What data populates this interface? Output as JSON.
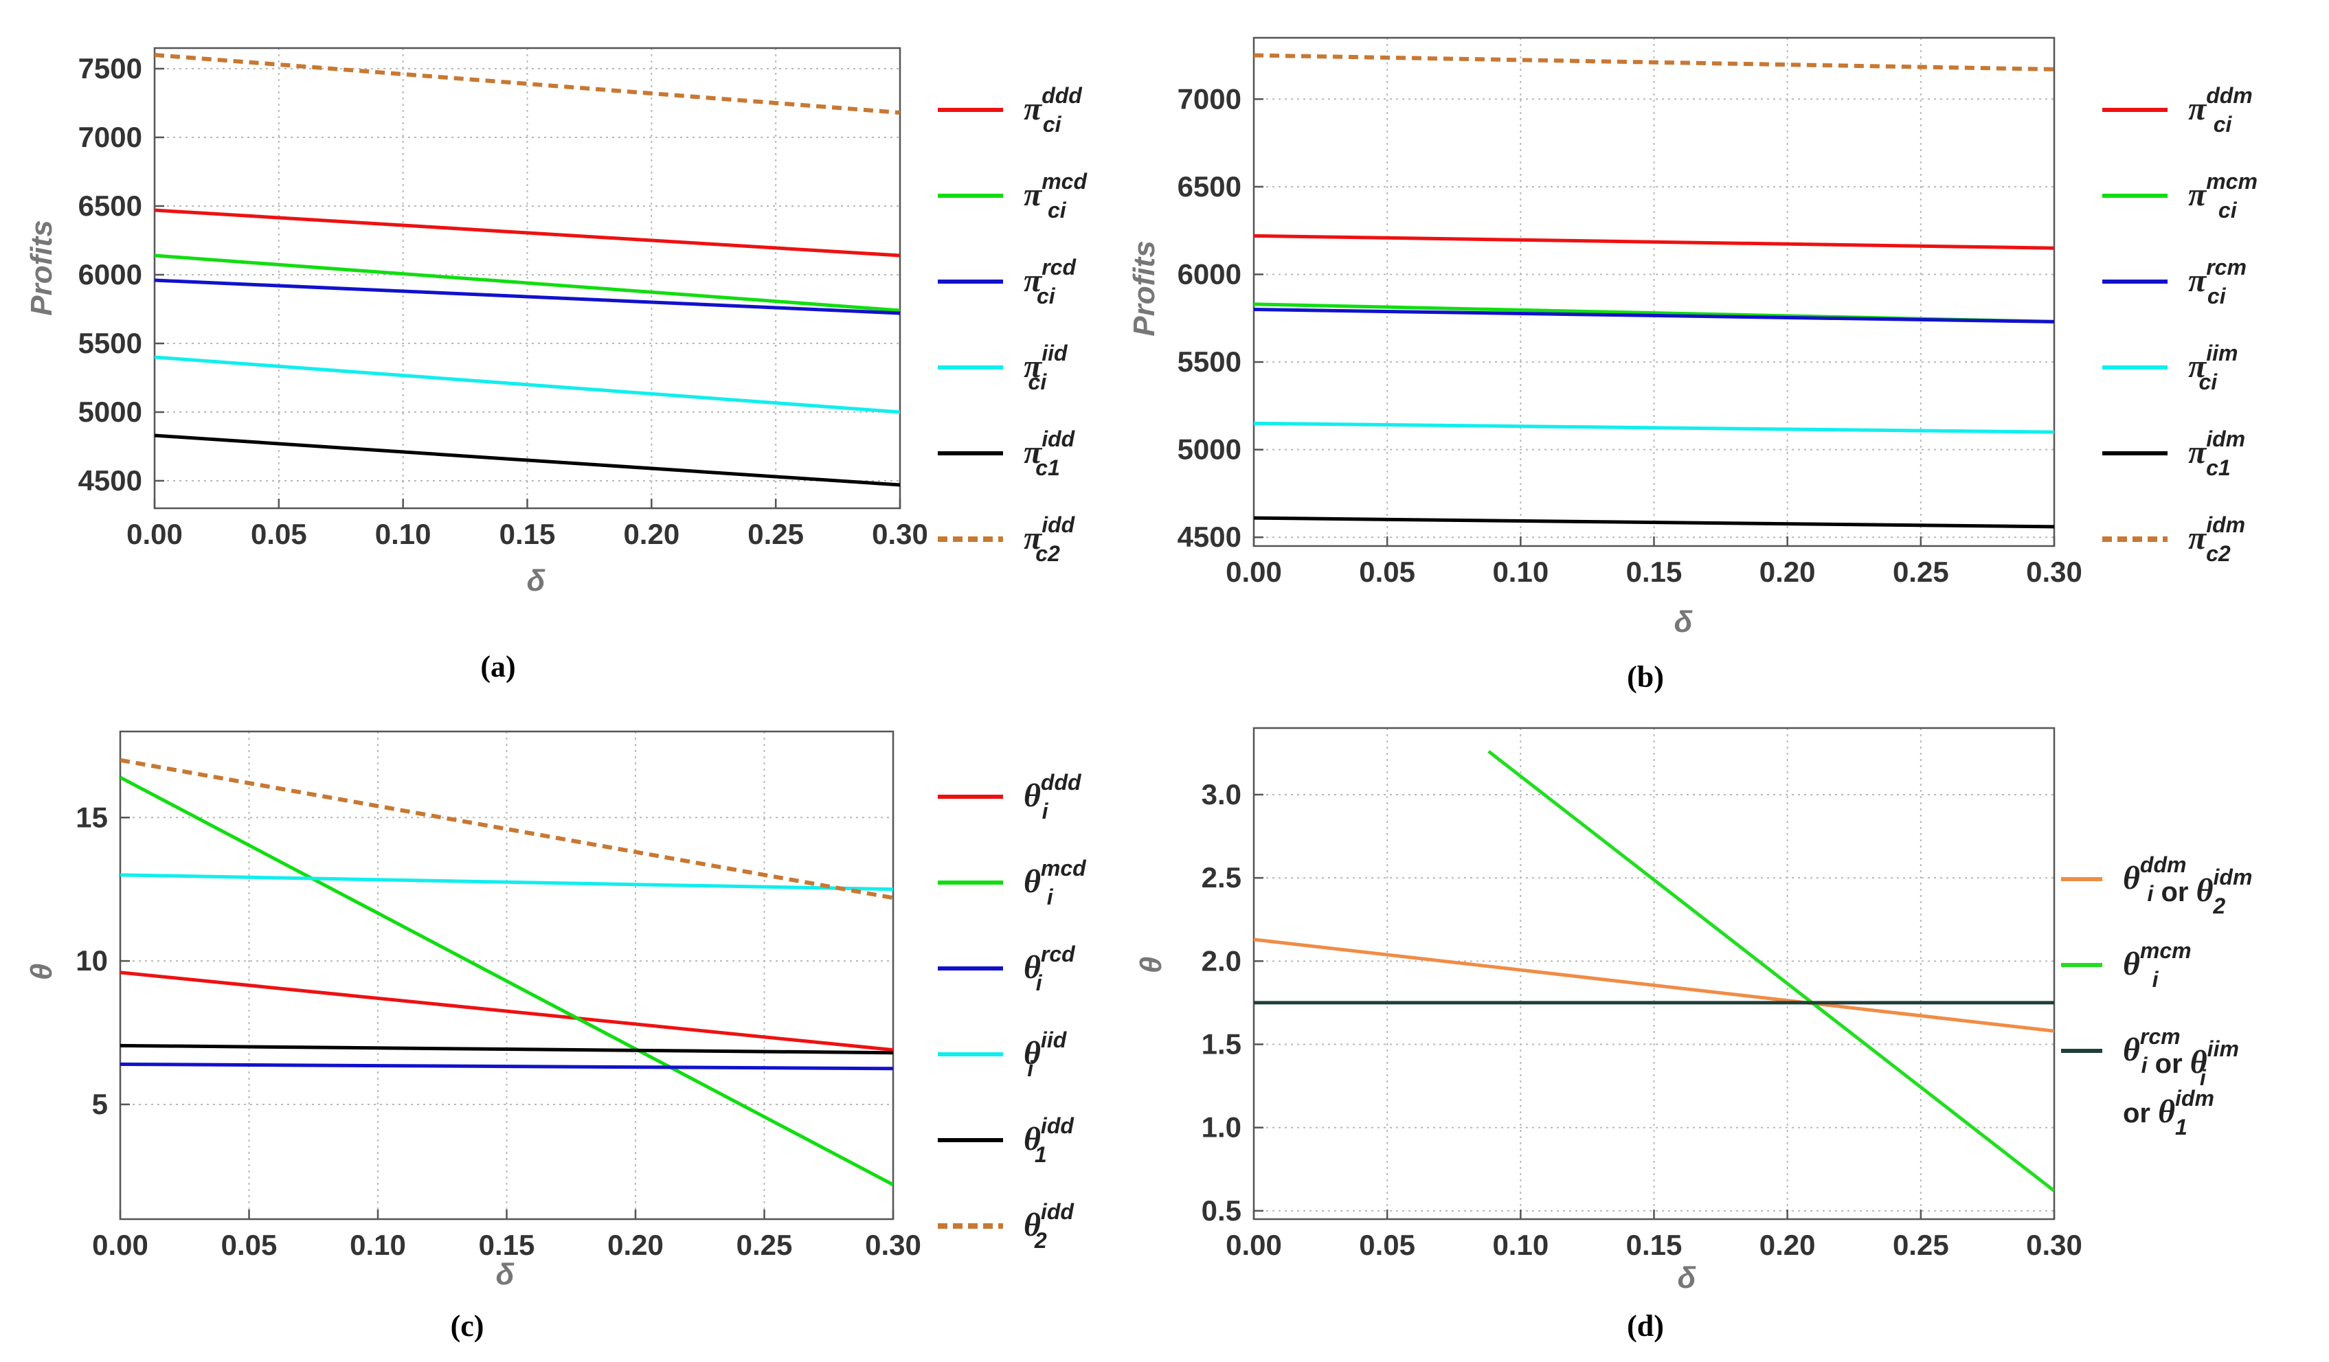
{
  "chart_data": [
    {
      "id": "a",
      "type": "line",
      "caption": "(a)",
      "xlabel": "δ",
      "ylabel": "Profits",
      "xlim": [
        0,
        0.3
      ],
      "ylim": [
        4300,
        7650
      ],
      "xticks": [
        0.0,
        0.05,
        0.1,
        0.15,
        0.2,
        0.25,
        0.3
      ],
      "xtick_labels": [
        "0.00",
        "0.05",
        "0.10",
        "0.15",
        "0.20",
        "0.25",
        "0.30"
      ],
      "yticks": [
        4500,
        5000,
        5500,
        6000,
        6500,
        7000,
        7500
      ],
      "ytick_labels": [
        "4500",
        "5000",
        "5500",
        "6000",
        "6500",
        "7000",
        "7500"
      ],
      "grid": true,
      "series": [
        {
          "base": "π",
          "sup": "ddd",
          "sub": "ci",
          "color": "#ee1111",
          "dash": false,
          "x": [
            0,
            0.3
          ],
          "y": [
            6470,
            6140
          ]
        },
        {
          "base": "π",
          "sup": "mcd",
          "sub": "ci",
          "color": "#11dd11",
          "dash": false,
          "x": [
            0,
            0.3
          ],
          "y": [
            6140,
            5740
          ]
        },
        {
          "base": "π",
          "sup": "rcd",
          "sub": "ci",
          "color": "#1111cc",
          "dash": false,
          "x": [
            0,
            0.3
          ],
          "y": [
            5960,
            5720
          ]
        },
        {
          "base": "π",
          "sup": "iid",
          "sub": "ci",
          "color": "#11eeee",
          "dash": false,
          "x": [
            0,
            0.3
          ],
          "y": [
            5400,
            5000
          ]
        },
        {
          "base": "π",
          "sup": "idd",
          "sub": "c1",
          "color": "#000000",
          "dash": false,
          "x": [
            0,
            0.3
          ],
          "y": [
            4830,
            4470
          ]
        },
        {
          "base": "π",
          "sup": "idd",
          "sub": "c2",
          "color": "#c87832",
          "dash": true,
          "x": [
            0,
            0.3
          ],
          "y": [
            7600,
            7180
          ]
        }
      ]
    },
    {
      "id": "b",
      "type": "line",
      "caption": "(b)",
      "xlabel": "δ",
      "ylabel": "Profits",
      "xlim": [
        0,
        0.3
      ],
      "ylim": [
        4450,
        7350
      ],
      "xticks": [
        0.0,
        0.05,
        0.1,
        0.15,
        0.2,
        0.25,
        0.3
      ],
      "xtick_labels": [
        "0.00",
        "0.05",
        "0.10",
        "0.15",
        "0.20",
        "0.25",
        "0.30"
      ],
      "yticks": [
        4500,
        5000,
        5500,
        6000,
        6500,
        7000
      ],
      "ytick_labels": [
        "4500",
        "5000",
        "5500",
        "6000",
        "6500",
        "7000"
      ],
      "grid": true,
      "series": [
        {
          "base": "π",
          "sup": "ddm",
          "sub": "ci",
          "color": "#ee1111",
          "dash": false,
          "x": [
            0,
            0.3
          ],
          "y": [
            6220,
            6150
          ]
        },
        {
          "base": "π",
          "sup": "mcm",
          "sub": "ci",
          "color": "#11dd11",
          "dash": false,
          "x": [
            0,
            0.3
          ],
          "y": [
            5830,
            5730
          ]
        },
        {
          "base": "π",
          "sup": "rcm",
          "sub": "ci",
          "color": "#1111cc",
          "dash": false,
          "x": [
            0,
            0.3
          ],
          "y": [
            5800,
            5730
          ]
        },
        {
          "base": "π",
          "sup": "iim",
          "sub": "ci",
          "color": "#11eeee",
          "dash": false,
          "x": [
            0,
            0.3
          ],
          "y": [
            5150,
            5100
          ]
        },
        {
          "base": "π",
          "sup": "idm",
          "sub": "c1",
          "color": "#000000",
          "dash": false,
          "x": [
            0,
            0.3
          ],
          "y": [
            4610,
            4560
          ]
        },
        {
          "base": "π",
          "sup": "idm",
          "sub": "c2",
          "color": "#c87832",
          "dash": true,
          "x": [
            0,
            0.3
          ],
          "y": [
            7250,
            7170
          ]
        }
      ]
    },
    {
      "id": "c",
      "type": "line",
      "caption": "(c)",
      "xlabel": "δ",
      "ylabel": "θ",
      "xlim": [
        0,
        0.3
      ],
      "ylim": [
        1.0,
        18.0
      ],
      "xticks": [
        0.0,
        0.05,
        0.1,
        0.15,
        0.2,
        0.25,
        0.3
      ],
      "xtick_labels": [
        "0.00",
        "0.05",
        "0.10",
        "0.15",
        "0.20",
        "0.25",
        "0.30"
      ],
      "yticks": [
        5,
        10,
        15
      ],
      "ytick_labels": [
        "5",
        "10",
        "15"
      ],
      "grid": true,
      "series": [
        {
          "base": "θ",
          "sup": "ddd",
          "sub": "i",
          "color": "#ee1111",
          "dash": false,
          "x": [
            0,
            0.3
          ],
          "y": [
            9.6,
            6.9
          ]
        },
        {
          "base": "θ",
          "sup": "mcd",
          "sub": "i",
          "color": "#11dd11",
          "dash": false,
          "x": [
            0,
            0.3
          ],
          "y": [
            16.4,
            2.2
          ]
        },
        {
          "base": "θ",
          "sup": "rcd",
          "sub": "i",
          "color": "#1111cc",
          "dash": false,
          "x": [
            0,
            0.3
          ],
          "y": [
            6.4,
            6.25
          ]
        },
        {
          "base": "θ",
          "sup": "iid",
          "sub": "i",
          "color": "#11eeee",
          "dash": false,
          "x": [
            0,
            0.3
          ],
          "y": [
            13.0,
            12.5
          ]
        },
        {
          "base": "θ",
          "sup": "idd",
          "sub": "1",
          "color": "#000000",
          "dash": false,
          "x": [
            0,
            0.3
          ],
          "y": [
            7.05,
            6.8
          ]
        },
        {
          "base": "θ",
          "sup": "idd",
          "sub": "2",
          "color": "#c87832",
          "dash": true,
          "x": [
            0,
            0.3
          ],
          "y": [
            17.0,
            12.2
          ]
        }
      ]
    },
    {
      "id": "d",
      "type": "line",
      "caption": "(d)",
      "xlabel": "δ",
      "ylabel": "θ",
      "xlim": [
        0,
        0.3
      ],
      "ylim": [
        0.45,
        3.4
      ],
      "xticks": [
        0.0,
        0.05,
        0.1,
        0.15,
        0.2,
        0.25,
        0.3
      ],
      "xtick_labels": [
        "0.00",
        "0.05",
        "0.10",
        "0.15",
        "0.20",
        "0.25",
        "0.30"
      ],
      "yticks": [
        0.5,
        1.0,
        1.5,
        2.0,
        2.5,
        3.0
      ],
      "ytick_labels": [
        "0.5",
        "1.0",
        "1.5",
        "2.0",
        "2.5",
        "3.0"
      ],
      "grid": true,
      "series": [
        {
          "color": "#f08c46",
          "dash": false,
          "x": [
            0,
            0.3
          ],
          "y": [
            2.13,
            1.58
          ],
          "legend_parts": [
            {
              "b": "θ",
              "sup": "ddm",
              "sub": "i"
            },
            {
              "t": " or "
            },
            {
              "b": "θ",
              "sup": "idm",
              "sub": "2"
            }
          ]
        },
        {
          "color": "#22dd22",
          "dash": false,
          "x": [
            0.088,
            0.3
          ],
          "y": [
            3.26,
            0.62
          ],
          "legend_parts": [
            {
              "b": "θ",
              "sup": "mcm",
              "sub": "i"
            }
          ]
        },
        {
          "color": "#1f3f3a",
          "dash": false,
          "x": [
            0,
            0.3
          ],
          "y": [
            1.75,
            1.75
          ],
          "legend_parts": [
            {
              "b": "θ",
              "sup": "rcm",
              "sub": "i"
            },
            {
              "t": " or "
            },
            {
              "b": "θ",
              "sup": "iim",
              "sub": "i"
            }
          ],
          "legend_parts_2": [
            {
              "t": "or "
            },
            {
              "b": "θ",
              "sup": "idm",
              "sub": "1"
            }
          ]
        }
      ]
    }
  ]
}
